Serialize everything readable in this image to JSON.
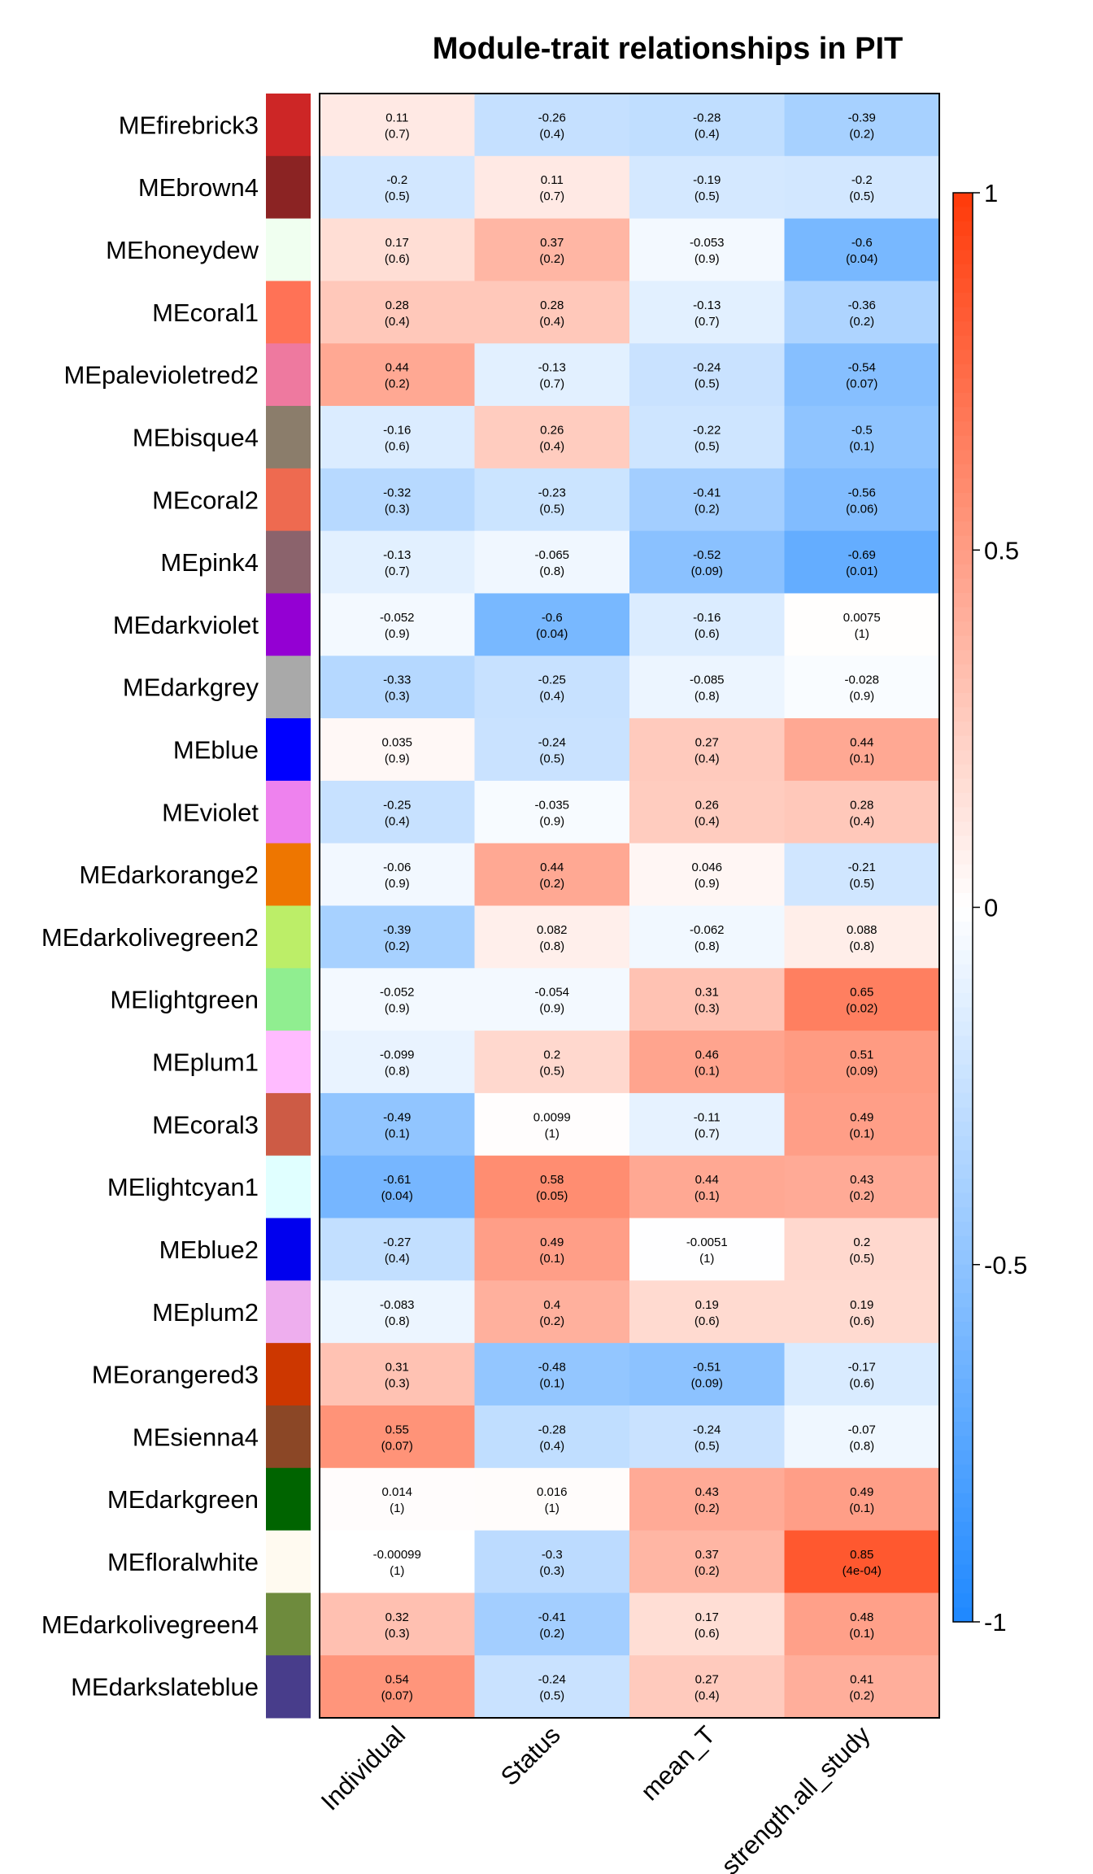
{
  "chart_data": {
    "type": "heatmap",
    "title": "Module-trait relationships in PIT",
    "rows": [
      {
        "name": "MEfirebrick3",
        "color": "#CD2626"
      },
      {
        "name": "MEbrown4",
        "color": "#8B2323"
      },
      {
        "name": "MEhoneydew",
        "color": "#F0FFF0"
      },
      {
        "name": "MEcoral1",
        "color": "#FF7256"
      },
      {
        "name": "MEpalevioletred2",
        "color": "#EE799F"
      },
      {
        "name": "MEbisque4",
        "color": "#8B7D6B"
      },
      {
        "name": "MEcoral2",
        "color": "#EE6A50"
      },
      {
        "name": "MEpink4",
        "color": "#8B636C"
      },
      {
        "name": "MEdarkviolet",
        "color": "#9400D3"
      },
      {
        "name": "MEdarkgrey",
        "color": "#A9A9A9"
      },
      {
        "name": "MEblue",
        "color": "#0000FF"
      },
      {
        "name": "MEviolet",
        "color": "#EE82EE"
      },
      {
        "name": "MEdarkorange2",
        "color": "#EE7600"
      },
      {
        "name": "MEdarkolivegreen2",
        "color": "#BCEE68"
      },
      {
        "name": "MElightgreen",
        "color": "#90EE90"
      },
      {
        "name": "MEplum1",
        "color": "#FFBBFF"
      },
      {
        "name": "MEcoral3",
        "color": "#CD5B45"
      },
      {
        "name": "MElightcyan1",
        "color": "#E0FFFF"
      },
      {
        "name": "MEblue2",
        "color": "#0000EE"
      },
      {
        "name": "MEplum2",
        "color": "#EEAEEE"
      },
      {
        "name": "MEorangered3",
        "color": "#CD3700"
      },
      {
        "name": "MEsienna4",
        "color": "#8B4726"
      },
      {
        "name": "MEdarkgreen",
        "color": "#006400"
      },
      {
        "name": "MEfloralwhite",
        "color": "#FFFAF0"
      },
      {
        "name": "MEdarkolivegreen4",
        "color": "#6E8B3D"
      },
      {
        "name": "MEdarkslateblue",
        "color": "#483D8B"
      }
    ],
    "columns": [
      "Individual",
      "Status",
      "mean_T",
      "strength.all_study"
    ],
    "correlations": [
      [
        "0.11",
        "-0.26",
        "-0.28",
        "-0.39"
      ],
      [
        "-0.2",
        "0.11",
        "-0.19",
        "-0.2"
      ],
      [
        "0.17",
        "0.37",
        "-0.053",
        "-0.6"
      ],
      [
        "0.28",
        "0.28",
        "-0.13",
        "-0.36"
      ],
      [
        "0.44",
        "-0.13",
        "-0.24",
        "-0.54"
      ],
      [
        "-0.16",
        "0.26",
        "-0.22",
        "-0.5"
      ],
      [
        "-0.32",
        "-0.23",
        "-0.41",
        "-0.56"
      ],
      [
        "-0.13",
        "-0.065",
        "-0.52",
        "-0.69"
      ],
      [
        "-0.052",
        "-0.6",
        "-0.16",
        "0.0075"
      ],
      [
        "-0.33",
        "-0.25",
        "-0.085",
        "-0.028"
      ],
      [
        "0.035",
        "-0.24",
        "0.27",
        "0.44"
      ],
      [
        "-0.25",
        "-0.035",
        "0.26",
        "0.28"
      ],
      [
        "-0.06",
        "0.44",
        "0.046",
        "-0.21"
      ],
      [
        "-0.39",
        "0.082",
        "-0.062",
        "0.088"
      ],
      [
        "-0.052",
        "-0.054",
        "0.31",
        "0.65"
      ],
      [
        "-0.099",
        "0.2",
        "0.46",
        "0.51"
      ],
      [
        "-0.49",
        "0.0099",
        "-0.11",
        "0.49"
      ],
      [
        "-0.61",
        "0.58",
        "0.44",
        "0.43"
      ],
      [
        "-0.27",
        "0.49",
        "-0.0051",
        "0.2"
      ],
      [
        "-0.083",
        "0.4",
        "0.19",
        "0.19"
      ],
      [
        "0.31",
        "-0.48",
        "-0.51",
        "-0.17"
      ],
      [
        "0.55",
        "-0.28",
        "-0.24",
        "-0.07"
      ],
      [
        "0.014",
        "0.016",
        "0.43",
        "0.49"
      ],
      [
        "-0.00099",
        "-0.3",
        "0.37",
        "0.85"
      ],
      [
        "0.32",
        "-0.41",
        "0.17",
        "0.48"
      ],
      [
        "0.54",
        "-0.24",
        "0.27",
        "0.41"
      ]
    ],
    "pvalues": [
      [
        "(0.7)",
        "(0.4)",
        "(0.4)",
        "(0.2)"
      ],
      [
        "(0.5)",
        "(0.7)",
        "(0.5)",
        "(0.5)"
      ],
      [
        "(0.6)",
        "(0.2)",
        "(0.9)",
        "(0.04)"
      ],
      [
        "(0.4)",
        "(0.4)",
        "(0.7)",
        "(0.2)"
      ],
      [
        "(0.2)",
        "(0.7)",
        "(0.5)",
        "(0.07)"
      ],
      [
        "(0.6)",
        "(0.4)",
        "(0.5)",
        "(0.1)"
      ],
      [
        "(0.3)",
        "(0.5)",
        "(0.2)",
        "(0.06)"
      ],
      [
        "(0.7)",
        "(0.8)",
        "(0.09)",
        "(0.01)"
      ],
      [
        "(0.9)",
        "(0.04)",
        "(0.6)",
        "(1)"
      ],
      [
        "(0.3)",
        "(0.4)",
        "(0.8)",
        "(0.9)"
      ],
      [
        "(0.9)",
        "(0.5)",
        "(0.4)",
        "(0.1)"
      ],
      [
        "(0.4)",
        "(0.9)",
        "(0.4)",
        "(0.4)"
      ],
      [
        "(0.9)",
        "(0.2)",
        "(0.9)",
        "(0.5)"
      ],
      [
        "(0.2)",
        "(0.8)",
        "(0.8)",
        "(0.8)"
      ],
      [
        "(0.9)",
        "(0.9)",
        "(0.3)",
        "(0.02)"
      ],
      [
        "(0.8)",
        "(0.5)",
        "(0.1)",
        "(0.09)"
      ],
      [
        "(0.1)",
        "(1)",
        "(0.7)",
        "(0.1)"
      ],
      [
        "(0.04)",
        "(0.05)",
        "(0.1)",
        "(0.2)"
      ],
      [
        "(0.4)",
        "(0.1)",
        "(1)",
        "(0.5)"
      ],
      [
        "(0.8)",
        "(0.2)",
        "(0.6)",
        "(0.6)"
      ],
      [
        "(0.3)",
        "(0.1)",
        "(0.09)",
        "(0.6)"
      ],
      [
        "(0.07)",
        "(0.4)",
        "(0.5)",
        "(0.8)"
      ],
      [
        "(1)",
        "(1)",
        "(0.2)",
        "(0.1)"
      ],
      [
        "(1)",
        "(0.3)",
        "(0.2)",
        "(4e-04)"
      ],
      [
        "(0.3)",
        "(0.2)",
        "(0.6)",
        "(0.1)"
      ],
      [
        "(0.07)",
        "(0.5)",
        "(0.4)",
        "(0.2)"
      ]
    ],
    "color_scale": {
      "min": -1,
      "max": 1,
      "low_color": "#1E88FF",
      "mid_color": "#FFFFFF",
      "high_color": "#FF3A0A",
      "ticks": [
        {
          "value": 1,
          "label": "1"
        },
        {
          "value": 0.5,
          "label": "0.5"
        },
        {
          "value": 0,
          "label": "0"
        },
        {
          "value": -0.5,
          "label": "-0.5"
        },
        {
          "value": -1,
          "label": "-1"
        }
      ]
    }
  }
}
